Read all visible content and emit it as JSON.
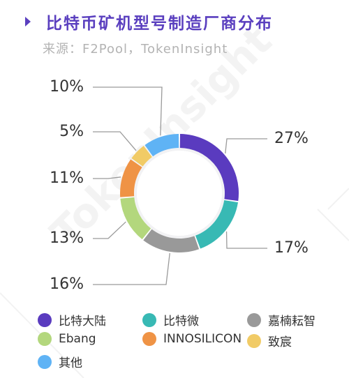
{
  "title": "比特币矿机型号制造厂商分布",
  "source": "来源：F2Pool，TokenInsight",
  "watermark": "TokenInsight",
  "colors": {
    "title": "#5a3fbf",
    "track": "#f2f2f4",
    "leader": "#9a9a9a"
  },
  "chart_data": {
    "type": "pie",
    "variant": "donut",
    "title": "比特币矿机型号制造厂商分布",
    "series": [
      {
        "name": "比特大陆",
        "value": 27,
        "label": "27%",
        "color": "#5a3bbf"
      },
      {
        "name": "比特微",
        "value": 17,
        "label": "17%",
        "color": "#38b9b4"
      },
      {
        "name": "嘉楠耘智",
        "value": 16,
        "label": "16%",
        "color": "#999999"
      },
      {
        "name": "Ebang",
        "value": 13,
        "label": "13%",
        "color": "#b3d77d"
      },
      {
        "name": "INNOSILICON",
        "value": 11,
        "label": "11%",
        "color": "#ef9345"
      },
      {
        "name": "致宸",
        "value": 5,
        "label": "5%",
        "color": "#f1cb66"
      },
      {
        "name": "其他",
        "value": 10,
        "label": "10%",
        "color": "#5fb3f5"
      }
    ],
    "legend_position": "bottom"
  }
}
